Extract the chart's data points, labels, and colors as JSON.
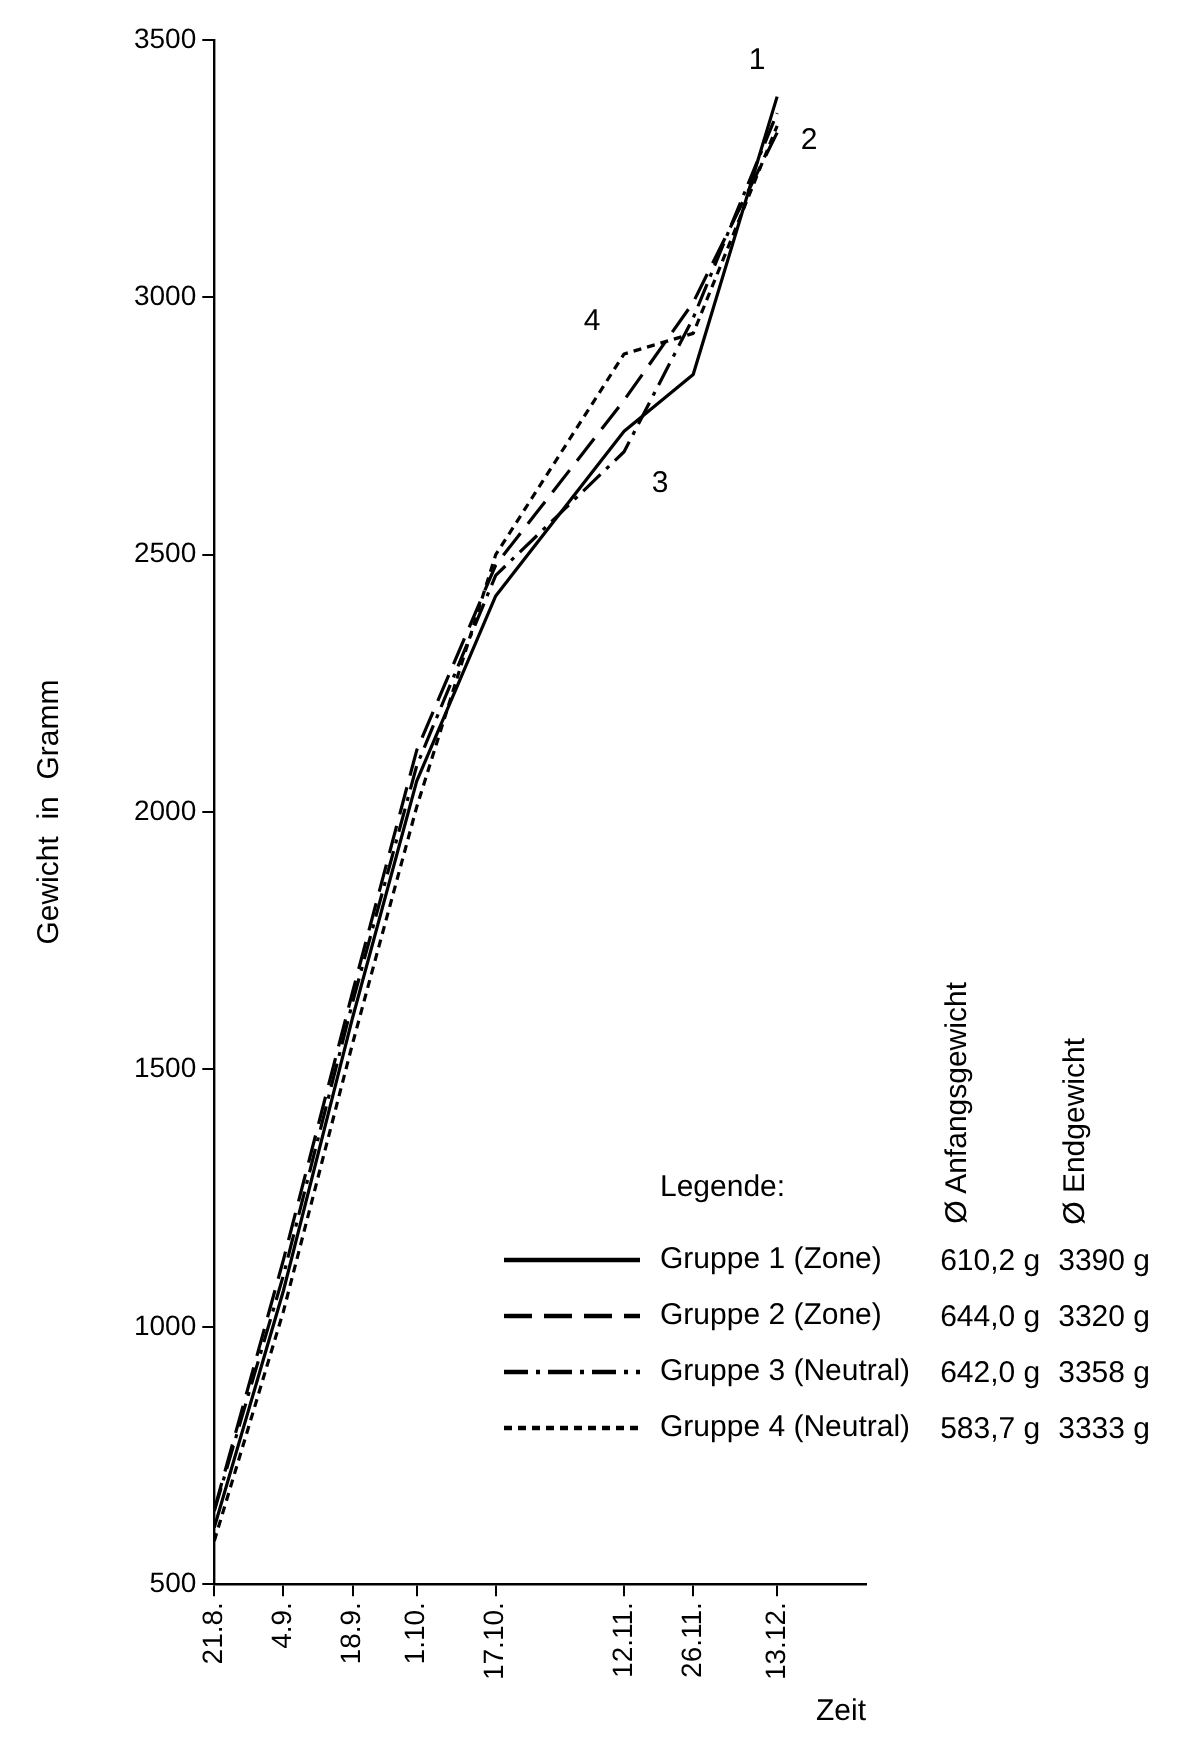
{
  "chart_data": {
    "type": "line",
    "xlabel": "Zeit",
    "ylabel": "Gewicht  in  Gramm",
    "legend_title": "Legende:",
    "legend": "bottom right",
    "grid": false,
    "marker": "none",
    "x": [
      "--08-21",
      "--09-04",
      "--09-18",
      "--10-01",
      "--10-17",
      "--11-12",
      "--11-26",
      "--12-13"
    ],
    "xlim": [
      "--08-21",
      "--12-31"
    ],
    "xticks": [
      {
        "value": "--08-21",
        "label": "21.8."
      },
      {
        "value": "--09-04",
        "label": "4.9."
      },
      {
        "value": "--09-18",
        "label": "18.9."
      },
      {
        "value": "--10-01",
        "label": "1.10."
      },
      {
        "value": "--10-17",
        "label": "17.10."
      },
      {
        "value": "--11-12",
        "label": "12.11."
      },
      {
        "value": "--11-26",
        "label": "26.11."
      },
      {
        "value": "--12-13",
        "label": "13.12."
      }
    ],
    "ylim": [
      500,
      3500
    ],
    "yticks": [
      500,
      1000,
      1500,
      2000,
      2500,
      3000,
      3500
    ],
    "series": [
      {
        "name": "Gruppe 1 (Zone)",
        "color": "#000000",
        "line_style": "solid",
        "values": [
          610,
          1070,
          1600,
          2060,
          2420,
          2740,
          2850,
          3390
        ]
      },
      {
        "name": "Gruppe 2 (Zone)",
        "color": "#000000",
        "line_style": "dashed",
        "values": [
          644,
          1130,
          1650,
          2120,
          2480,
          2800,
          2990,
          3320
        ]
      },
      {
        "name": "Gruppe 3 (Neutral)",
        "color": "#000000",
        "line_style": "dashdot",
        "values": [
          642,
          1100,
          1630,
          2090,
          2460,
          2700,
          2960,
          3358
        ]
      },
      {
        "name": "Gruppe 4 (Neutral)",
        "color": "#000000",
        "line_style": "dotted",
        "values": [
          584,
          1030,
          1550,
          2010,
          2500,
          2890,
          2930,
          3333
        ]
      }
    ],
    "annotations": [
      {
        "text": "1",
        "x": "--12-13",
        "y": 3390
      },
      {
        "text": "2",
        "x": "--12-13",
        "y": 3320
      },
      {
        "text": "3",
        "x": "--11-12",
        "y": 2700
      },
      {
        "text": "4",
        "x": "--11-12",
        "y": 2890
      },
      "Ø Anfangsgewicht",
      "Ø Endgewicht",
      "610,2 g",
      "3390 g",
      "644,0 g",
      "3320 g",
      "642,0 g",
      "3358 g",
      "583,7 g",
      "3333 g"
    ]
  }
}
